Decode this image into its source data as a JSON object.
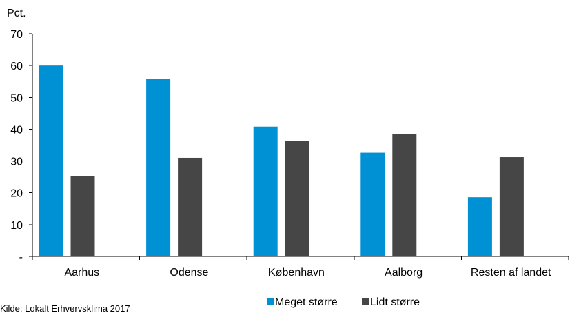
{
  "chart_data": {
    "type": "bar",
    "ylabel": "Pct.",
    "xlabel": "",
    "title": "",
    "categories": [
      "Aarhus",
      "Odense",
      "København",
      "Aalborg",
      "Resten af landet"
    ],
    "series": [
      {
        "name": "Meget større",
        "color": "#0091d5",
        "values": [
          60,
          55.7,
          40.8,
          32.6,
          18.6
        ]
      },
      {
        "name": "Lidt større",
        "color": "#464646",
        "values": [
          25.3,
          31,
          36.2,
          38.4,
          31.2
        ]
      }
    ],
    "ylim": [
      0,
      70
    ],
    "yticks": [
      0,
      10,
      20,
      30,
      40,
      50,
      60,
      70
    ],
    "ytick_labels": [
      "-",
      "10",
      "20",
      "30",
      "40",
      "50",
      "60",
      "70"
    ],
    "grid": false,
    "legend": "bottom-center"
  },
  "source": "Kilde: Lokalt Erhvervsklima 2017"
}
